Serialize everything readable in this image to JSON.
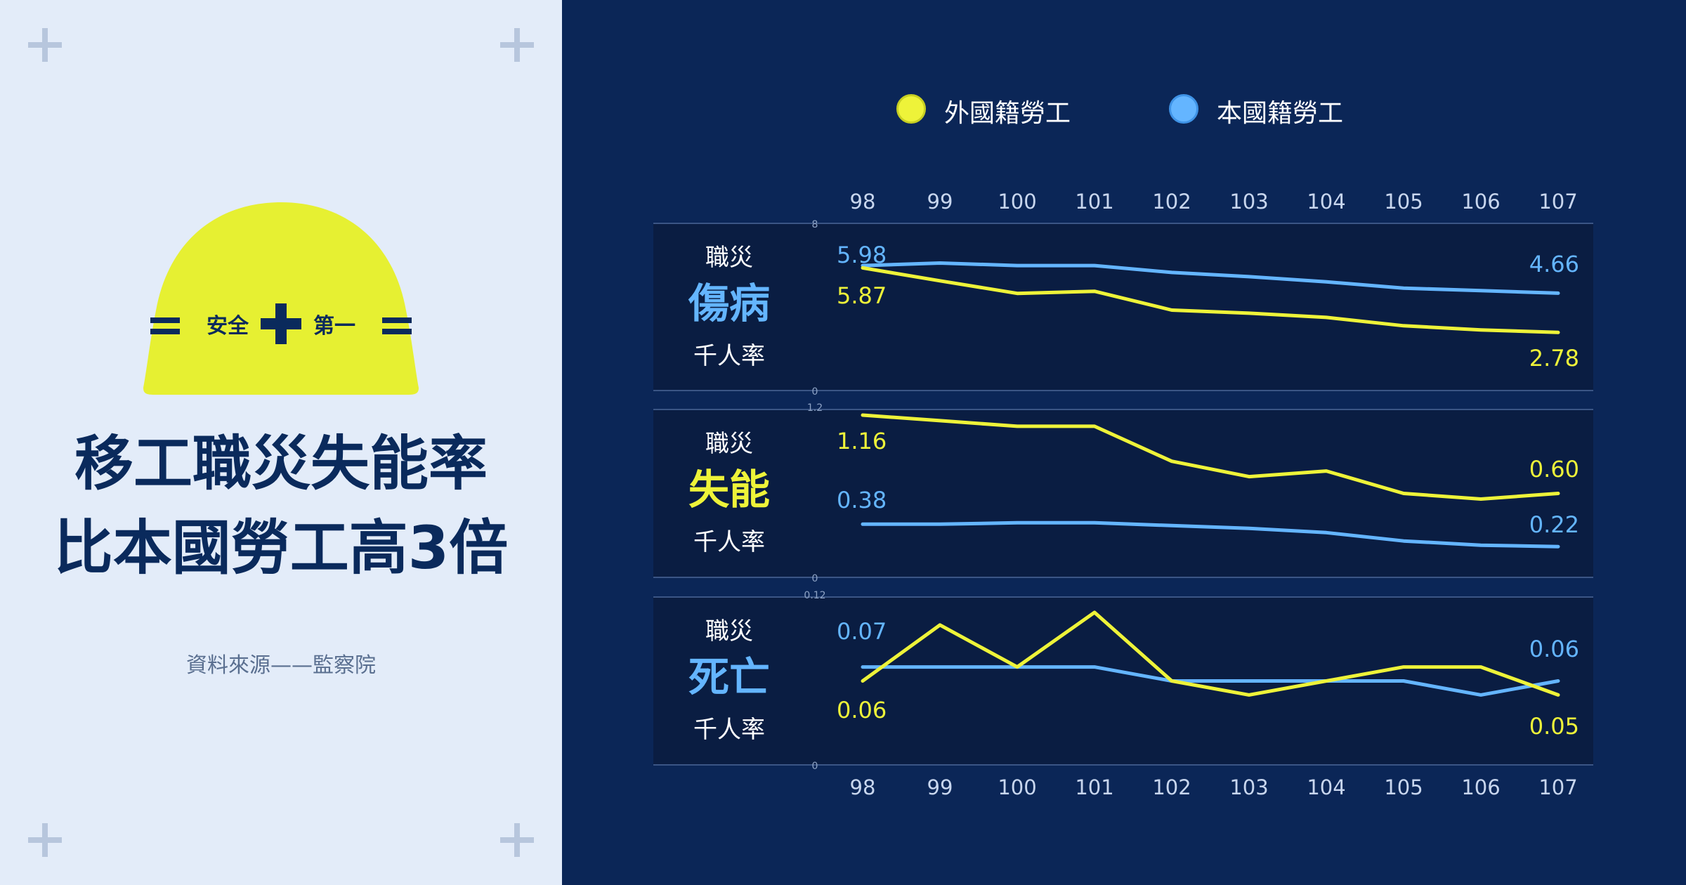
{
  "left": {
    "helmet_text_left": "安全",
    "helmet_text_right": "第一",
    "headline_line1": "移工職災失能率",
    "headline_line2": "比本國勞工高3倍",
    "source": "資料來源——監察院"
  },
  "colors": {
    "foreign": "#eef339",
    "domestic": "#64b5ff",
    "background": "#0b2657",
    "panel": "#0a1d42",
    "left_bg": "#e3ecf9",
    "helmet": "#e6f032",
    "navy": "#0a2a5c"
  },
  "legend": {
    "foreign_label": "外國籍勞工",
    "domestic_label": "本國籍勞工"
  },
  "chart_data": [
    {
      "type": "line",
      "row_top": "職災",
      "row_title": "傷病",
      "row_bottom": "千人率",
      "x": [
        "98",
        "99",
        "100",
        "101",
        "102",
        "103",
        "104",
        "105",
        "106",
        "107"
      ],
      "ylim": [
        0,
        8
      ],
      "axis_ticks": [
        "8",
        "0"
      ],
      "series": [
        {
          "name": "外國籍勞工",
          "key": "foreign",
          "values": [
            5.87,
            5.25,
            4.65,
            4.75,
            3.85,
            3.7,
            3.5,
            3.1,
            2.9,
            2.78
          ],
          "start_label": "5.87",
          "end_label": "2.78"
        },
        {
          "name": "本國籍勞工",
          "key": "domestic",
          "values": [
            5.98,
            6.1,
            5.98,
            5.98,
            5.65,
            5.45,
            5.2,
            4.9,
            4.78,
            4.66
          ],
          "start_label": "5.98",
          "end_label": "4.66"
        }
      ]
    },
    {
      "type": "line",
      "row_top": "職災",
      "row_title": "失能",
      "row_bottom": "千人率",
      "x": [
        "98",
        "99",
        "100",
        "101",
        "102",
        "103",
        "104",
        "105",
        "106",
        "107"
      ],
      "ylim": [
        0,
        1.2
      ],
      "axis_ticks": [
        "1.2",
        "0"
      ],
      "series": [
        {
          "name": "外國籍勞工",
          "key": "foreign",
          "values": [
            1.16,
            1.12,
            1.08,
            1.08,
            0.83,
            0.72,
            0.76,
            0.6,
            0.56,
            0.6
          ],
          "start_label": "1.16",
          "end_label": "0.60"
        },
        {
          "name": "本國籍勞工",
          "key": "domestic",
          "values": [
            0.38,
            0.38,
            0.39,
            0.39,
            0.37,
            0.35,
            0.32,
            0.26,
            0.23,
            0.22
          ],
          "start_label": "0.38",
          "end_label": "0.22"
        }
      ]
    },
    {
      "type": "line",
      "row_top": "職災",
      "row_title": "死亡",
      "row_bottom": "千人率",
      "x": [
        "98",
        "99",
        "100",
        "101",
        "102",
        "103",
        "104",
        "105",
        "106",
        "107"
      ],
      "ylim": [
        0,
        0.12
      ],
      "axis_ticks": [
        "0.12",
        "0"
      ],
      "series": [
        {
          "name": "外國籍勞工",
          "key": "foreign",
          "values": [
            0.06,
            0.1,
            0.07,
            0.109,
            0.06,
            0.05,
            0.06,
            0.07,
            0.07,
            0.05
          ],
          "start_label": "0.06",
          "end_label": "0.05"
        },
        {
          "name": "本國籍勞工",
          "key": "domestic",
          "values": [
            0.07,
            0.07,
            0.07,
            0.07,
            0.06,
            0.06,
            0.06,
            0.06,
            0.05,
            0.06
          ],
          "start_label": "0.07",
          "end_label": "0.06"
        }
      ]
    }
  ]
}
